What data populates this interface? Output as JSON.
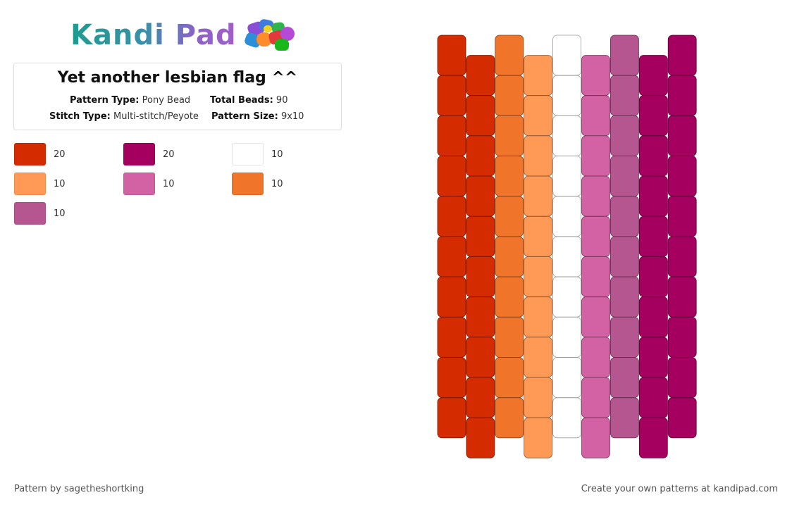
{
  "brand": {
    "logo_text": "Kandi Pad",
    "logo_icon": "bead-cluster-icon"
  },
  "pattern": {
    "title": "Yet another lesbian flag ^^",
    "pattern_type_label": "Pattern Type:",
    "pattern_type": "Pony Bead",
    "total_beads_label": "Total Beads:",
    "total_beads": "90",
    "stitch_type_label": "Stitch Type:",
    "stitch_type": "Multi-stitch/Peyote",
    "pattern_size_label": "Pattern Size:",
    "pattern_size": "9x10"
  },
  "legend": [
    {
      "color": "#d42b00",
      "count": "20"
    },
    {
      "color": "#a50060",
      "count": "20"
    },
    {
      "color": "#ffffff",
      "count": "10"
    },
    {
      "color": "#ff9a56",
      "count": "10"
    },
    {
      "color": "#d362a4",
      "count": "10"
    },
    {
      "color": "#f0752a",
      "count": "10"
    },
    {
      "color": "#b55690",
      "count": "10"
    }
  ],
  "grid": {
    "columns": 9,
    "rows_per_column": 10,
    "column_colors": [
      "#d42b00",
      "#d42b00",
      "#f0752a",
      "#ff9a56",
      "#ffffff",
      "#d362a4",
      "#b55690",
      "#a50060",
      "#a50060"
    ]
  },
  "footer": {
    "left": "Pattern by sagetheshortking",
    "right": "Create your own patterns at kandipad.com"
  }
}
